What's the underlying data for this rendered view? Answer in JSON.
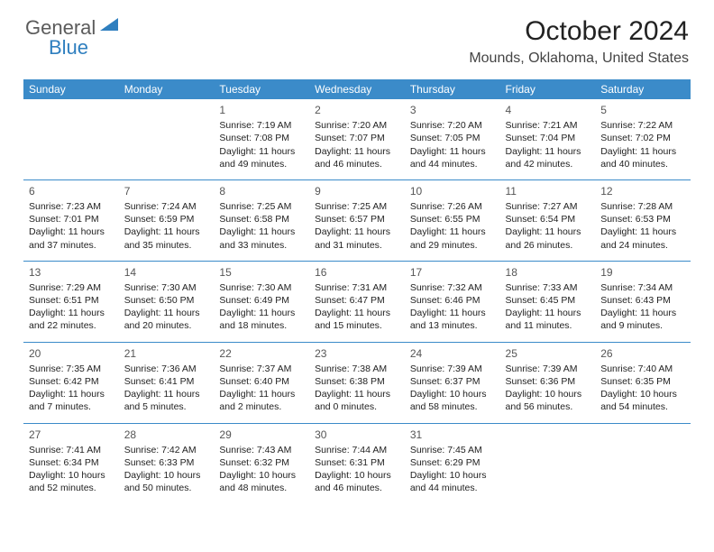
{
  "logo": {
    "textGeneral": "General",
    "textBlue": "Blue",
    "arrowColor": "#2f7fbf",
    "generalColor": "#5b5b5b",
    "blueColor": "#2f7fbf"
  },
  "title": "October 2024",
  "location": "Mounds, Oklahoma, United States",
  "headerBg": "#3b8bc9",
  "headerFg": "#ffffff",
  "borderColor": "#3b8bc9",
  "dayNames": [
    "Sunday",
    "Monday",
    "Tuesday",
    "Wednesday",
    "Thursday",
    "Friday",
    "Saturday"
  ],
  "startDayIndex": 2,
  "daysInMonth": 31,
  "cellFontSize": 10.5,
  "dayNumFontSize": 12,
  "days": {
    "1": {
      "sunrise": "7:19 AM",
      "sunset": "7:08 PM",
      "daylight": "11 hours and 49 minutes."
    },
    "2": {
      "sunrise": "7:20 AM",
      "sunset": "7:07 PM",
      "daylight": "11 hours and 46 minutes."
    },
    "3": {
      "sunrise": "7:20 AM",
      "sunset": "7:05 PM",
      "daylight": "11 hours and 44 minutes."
    },
    "4": {
      "sunrise": "7:21 AM",
      "sunset": "7:04 PM",
      "daylight": "11 hours and 42 minutes."
    },
    "5": {
      "sunrise": "7:22 AM",
      "sunset": "7:02 PM",
      "daylight": "11 hours and 40 minutes."
    },
    "6": {
      "sunrise": "7:23 AM",
      "sunset": "7:01 PM",
      "daylight": "11 hours and 37 minutes."
    },
    "7": {
      "sunrise": "7:24 AM",
      "sunset": "6:59 PM",
      "daylight": "11 hours and 35 minutes."
    },
    "8": {
      "sunrise": "7:25 AM",
      "sunset": "6:58 PM",
      "daylight": "11 hours and 33 minutes."
    },
    "9": {
      "sunrise": "7:25 AM",
      "sunset": "6:57 PM",
      "daylight": "11 hours and 31 minutes."
    },
    "10": {
      "sunrise": "7:26 AM",
      "sunset": "6:55 PM",
      "daylight": "11 hours and 29 minutes."
    },
    "11": {
      "sunrise": "7:27 AM",
      "sunset": "6:54 PM",
      "daylight": "11 hours and 26 minutes."
    },
    "12": {
      "sunrise": "7:28 AM",
      "sunset": "6:53 PM",
      "daylight": "11 hours and 24 minutes."
    },
    "13": {
      "sunrise": "7:29 AM",
      "sunset": "6:51 PM",
      "daylight": "11 hours and 22 minutes."
    },
    "14": {
      "sunrise": "7:30 AM",
      "sunset": "6:50 PM",
      "daylight": "11 hours and 20 minutes."
    },
    "15": {
      "sunrise": "7:30 AM",
      "sunset": "6:49 PM",
      "daylight": "11 hours and 18 minutes."
    },
    "16": {
      "sunrise": "7:31 AM",
      "sunset": "6:47 PM",
      "daylight": "11 hours and 15 minutes."
    },
    "17": {
      "sunrise": "7:32 AM",
      "sunset": "6:46 PM",
      "daylight": "11 hours and 13 minutes."
    },
    "18": {
      "sunrise": "7:33 AM",
      "sunset": "6:45 PM",
      "daylight": "11 hours and 11 minutes."
    },
    "19": {
      "sunrise": "7:34 AM",
      "sunset": "6:43 PM",
      "daylight": "11 hours and 9 minutes."
    },
    "20": {
      "sunrise": "7:35 AM",
      "sunset": "6:42 PM",
      "daylight": "11 hours and 7 minutes."
    },
    "21": {
      "sunrise": "7:36 AM",
      "sunset": "6:41 PM",
      "daylight": "11 hours and 5 minutes."
    },
    "22": {
      "sunrise": "7:37 AM",
      "sunset": "6:40 PM",
      "daylight": "11 hours and 2 minutes."
    },
    "23": {
      "sunrise": "7:38 AM",
      "sunset": "6:38 PM",
      "daylight": "11 hours and 0 minutes."
    },
    "24": {
      "sunrise": "7:39 AM",
      "sunset": "6:37 PM",
      "daylight": "10 hours and 58 minutes."
    },
    "25": {
      "sunrise": "7:39 AM",
      "sunset": "6:36 PM",
      "daylight": "10 hours and 56 minutes."
    },
    "26": {
      "sunrise": "7:40 AM",
      "sunset": "6:35 PM",
      "daylight": "10 hours and 54 minutes."
    },
    "27": {
      "sunrise": "7:41 AM",
      "sunset": "6:34 PM",
      "daylight": "10 hours and 52 minutes."
    },
    "28": {
      "sunrise": "7:42 AM",
      "sunset": "6:33 PM",
      "daylight": "10 hours and 50 minutes."
    },
    "29": {
      "sunrise": "7:43 AM",
      "sunset": "6:32 PM",
      "daylight": "10 hours and 48 minutes."
    },
    "30": {
      "sunrise": "7:44 AM",
      "sunset": "6:31 PM",
      "daylight": "10 hours and 46 minutes."
    },
    "31": {
      "sunrise": "7:45 AM",
      "sunset": "6:29 PM",
      "daylight": "10 hours and 44 minutes."
    }
  },
  "labels": {
    "sunrise": "Sunrise: ",
    "sunset": "Sunset: ",
    "daylight": "Daylight: "
  }
}
